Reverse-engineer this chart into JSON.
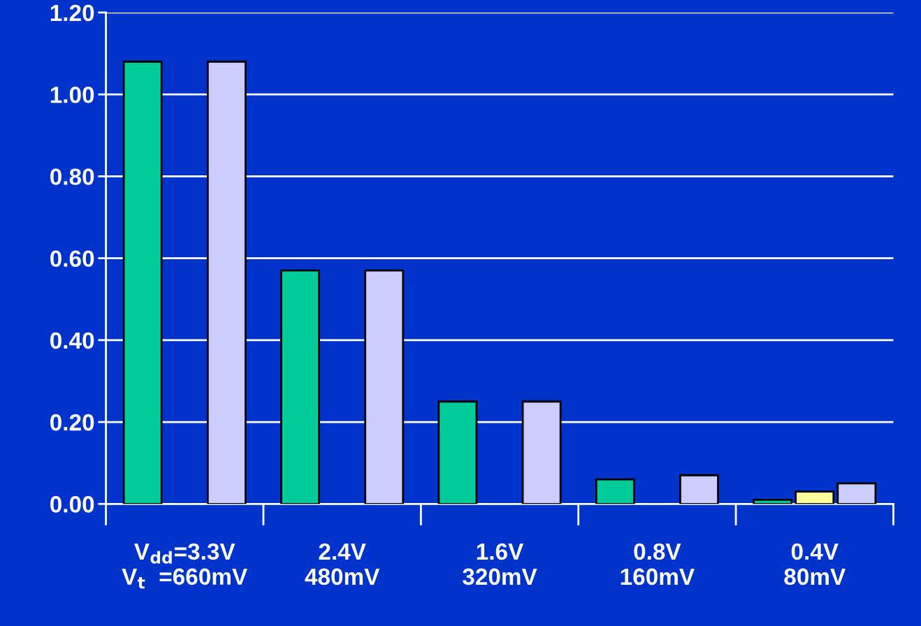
{
  "chart_data": {
    "type": "bar",
    "categories": [
      "V$_{dd}$=3.3V\nV$_{t}$  =660mV",
      "2.4V\n480mV",
      "1.6V\n320mV",
      "0.8V\n160mV",
      "0.4V\n80mV"
    ],
    "series": [
      {
        "color": "#00cc99",
        "values": [
          1.08,
          0.57,
          0.25,
          0.06,
          0.01
        ]
      },
      {
        "color": "#ffff99",
        "values": [
          0,
          0,
          0,
          0,
          0.03
        ]
      },
      {
        "color": "#ccccff",
        "values": [
          1.08,
          0.57,
          0.25,
          0.07,
          0.05
        ]
      }
    ],
    "ylim": [
      0,
      1.2
    ],
    "yticks": [
      {
        "value": 0,
        "label": "0.00"
      },
      {
        "value": 0.2,
        "label": "0.20"
      },
      {
        "value": 0.4,
        "label": "0.40"
      },
      {
        "value": 0.6,
        "label": "0.60"
      },
      {
        "value": 0.8,
        "label": "0.80"
      },
      {
        "value": 1.0,
        "label": "1.00"
      },
      {
        "value": 1.2,
        "label": "1.20"
      }
    ],
    "grid": "y",
    "legend": false
  }
}
